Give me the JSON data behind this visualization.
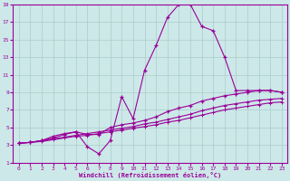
{
  "xlabel": "Windchill (Refroidissement éolien,°C)",
  "background_color": "#cde8e8",
  "line_color": "#990099",
  "xlim": [
    -0.5,
    23.5
  ],
  "ylim": [
    1,
    19
  ],
  "xticks": [
    0,
    1,
    2,
    3,
    4,
    5,
    6,
    7,
    8,
    9,
    10,
    11,
    12,
    13,
    14,
    15,
    16,
    17,
    18,
    19,
    20,
    21,
    22,
    23
  ],
  "yticks": [
    1,
    3,
    5,
    7,
    9,
    11,
    13,
    15,
    17,
    19
  ],
  "line1_x": [
    0,
    1,
    2,
    3,
    4,
    5,
    6,
    7,
    8,
    9,
    10,
    11,
    12,
    13,
    14,
    15,
    16,
    17,
    18,
    19,
    20,
    21,
    22,
    23
  ],
  "line1_y": [
    3.2,
    3.3,
    3.5,
    4.0,
    4.3,
    4.5,
    2.8,
    2.0,
    3.5,
    8.5,
    6.0,
    11.5,
    14.3,
    17.5,
    19.0,
    19.0,
    16.5,
    16.0,
    13.0,
    9.2,
    9.2,
    9.2,
    9.2,
    9.0
  ],
  "line2_x": [
    0,
    1,
    2,
    3,
    4,
    5,
    6,
    7,
    8,
    9,
    10,
    11,
    12,
    13,
    14,
    15,
    16,
    17,
    18,
    19,
    20,
    21,
    22,
    23
  ],
  "line2_y": [
    3.2,
    3.3,
    3.5,
    3.8,
    4.2,
    4.5,
    4.2,
    4.2,
    5.0,
    5.3,
    5.5,
    5.8,
    6.2,
    6.8,
    7.2,
    7.5,
    8.0,
    8.3,
    8.6,
    8.8,
    9.0,
    9.2,
    9.2,
    9.0
  ],
  "line3_x": [
    0,
    1,
    2,
    3,
    4,
    5,
    6,
    7,
    8,
    9,
    10,
    11,
    12,
    13,
    14,
    15,
    16,
    17,
    18,
    19,
    20,
    21,
    22,
    23
  ],
  "line3_y": [
    3.2,
    3.3,
    3.5,
    3.7,
    3.9,
    4.1,
    4.3,
    4.5,
    4.7,
    4.9,
    5.1,
    5.4,
    5.6,
    5.9,
    6.2,
    6.5,
    6.9,
    7.2,
    7.5,
    7.7,
    7.9,
    8.1,
    8.2,
    8.3
  ],
  "line4_x": [
    0,
    1,
    2,
    3,
    4,
    5,
    6,
    7,
    8,
    9,
    10,
    11,
    12,
    13,
    14,
    15,
    16,
    17,
    18,
    19,
    20,
    21,
    22,
    23
  ],
  "line4_y": [
    3.2,
    3.3,
    3.4,
    3.6,
    3.8,
    4.0,
    4.1,
    4.3,
    4.5,
    4.7,
    4.9,
    5.1,
    5.3,
    5.6,
    5.8,
    6.1,
    6.4,
    6.7,
    7.0,
    7.2,
    7.4,
    7.6,
    7.8,
    7.9
  ]
}
